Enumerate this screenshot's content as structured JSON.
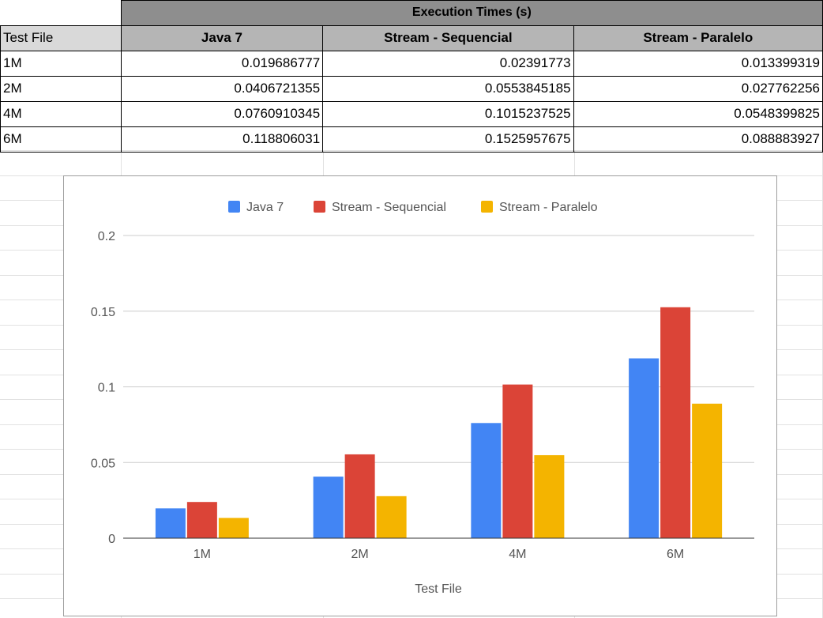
{
  "table": {
    "super_header": "Execution Times (s)",
    "columns": [
      "Test File",
      "Java 7",
      "Stream - Sequencial",
      "Stream - Paralelo"
    ],
    "rows": [
      [
        "1M",
        "0.019686777",
        "0.02391773",
        "0.013399319"
      ],
      [
        "2M",
        "0.0406721355",
        "0.0553845185",
        "0.027762256"
      ],
      [
        "4M",
        "0.0760910345",
        "0.1015237525",
        "0.0548399825"
      ],
      [
        "6M",
        "0.118806031",
        "0.1525957675",
        "0.088883927"
      ]
    ]
  },
  "chart_data": {
    "type": "bar",
    "title": "",
    "xlabel": "Test File",
    "ylabel": "",
    "categories": [
      "1M",
      "2M",
      "4M",
      "6M"
    ],
    "series": [
      {
        "name": "Java 7",
        "color": "#4285f4",
        "values": [
          0.019686777,
          0.0406721355,
          0.0760910345,
          0.118806031
        ]
      },
      {
        "name": "Stream - Sequencial",
        "color": "#db4437",
        "values": [
          0.02391773,
          0.0553845185,
          0.1015237525,
          0.1525957675
        ]
      },
      {
        "name": "Stream - Paralelo",
        "color": "#f4b400",
        "values": [
          0.013399319,
          0.027762256,
          0.0548399825,
          0.088883927
        ]
      }
    ],
    "yticks": [
      "0",
      "0.05",
      "0.1",
      "0.15",
      "0.2"
    ],
    "ylim": [
      0,
      0.2
    ],
    "grid": true,
    "legend": "top"
  }
}
